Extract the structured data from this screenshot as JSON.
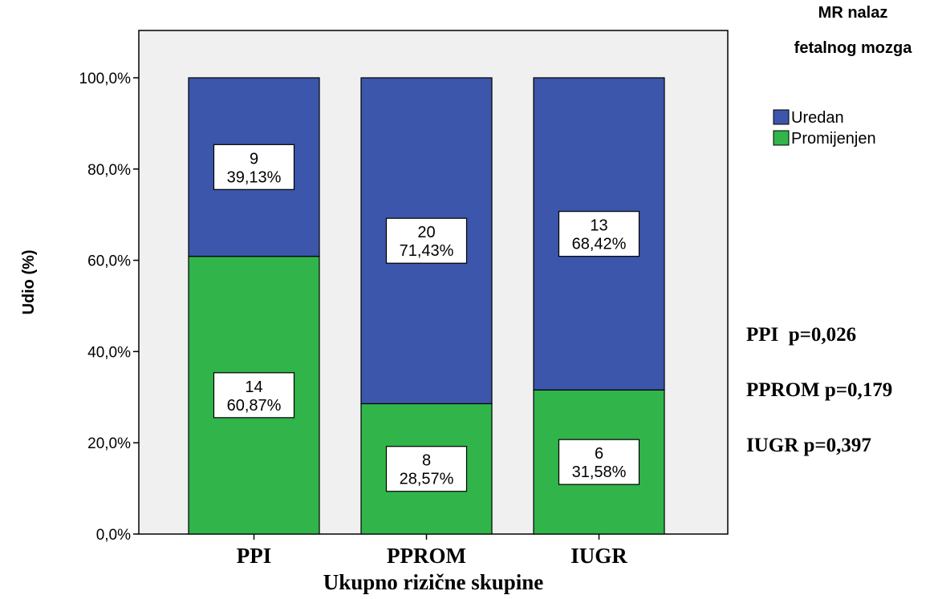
{
  "chart_data": {
    "type": "bar",
    "stacked": true,
    "categories": [
      "PPI",
      "PPROM",
      "IUGR"
    ],
    "series": [
      {
        "name": "Promijenjen",
        "color": "#31b449",
        "percent": [
          60.87,
          28.57,
          31.58
        ],
        "counts": [
          14,
          8,
          6
        ],
        "count_labels": [
          "14",
          "8",
          "6"
        ],
        "percent_labels": [
          "60,87%",
          "28,57%",
          "31,58%"
        ]
      },
      {
        "name": "Uredan",
        "color": "#3b56aa",
        "percent": [
          39.13,
          71.43,
          68.42
        ],
        "counts": [
          9,
          20,
          13
        ],
        "count_labels": [
          "9",
          "20",
          "13"
        ],
        "percent_labels": [
          "39,13%",
          "71,43%",
          "68,42%"
        ]
      }
    ],
    "xlabel": "Ukupno rizične skupine",
    "ylabel": "Udio (%)",
    "ylim": [
      0,
      100
    ],
    "yticks": [
      0,
      20,
      40,
      60,
      80,
      100
    ],
    "ytick_labels": [
      "0,0%",
      "20,0%",
      "40,0%",
      "60,0%",
      "80,0%",
      "100,0%"
    ],
    "legend": {
      "title_lines": [
        "MR nalaz",
        "fetalnog mozga"
      ],
      "entries": [
        "Uredan",
        "Promijenjen"
      ],
      "placement": "top-right"
    },
    "annotations": [
      "PPI  p=0,026",
      "PPROM p=0,179",
      "IUGR p=0,397"
    ],
    "grid": false,
    "plot_background": "#f0f0f0"
  }
}
